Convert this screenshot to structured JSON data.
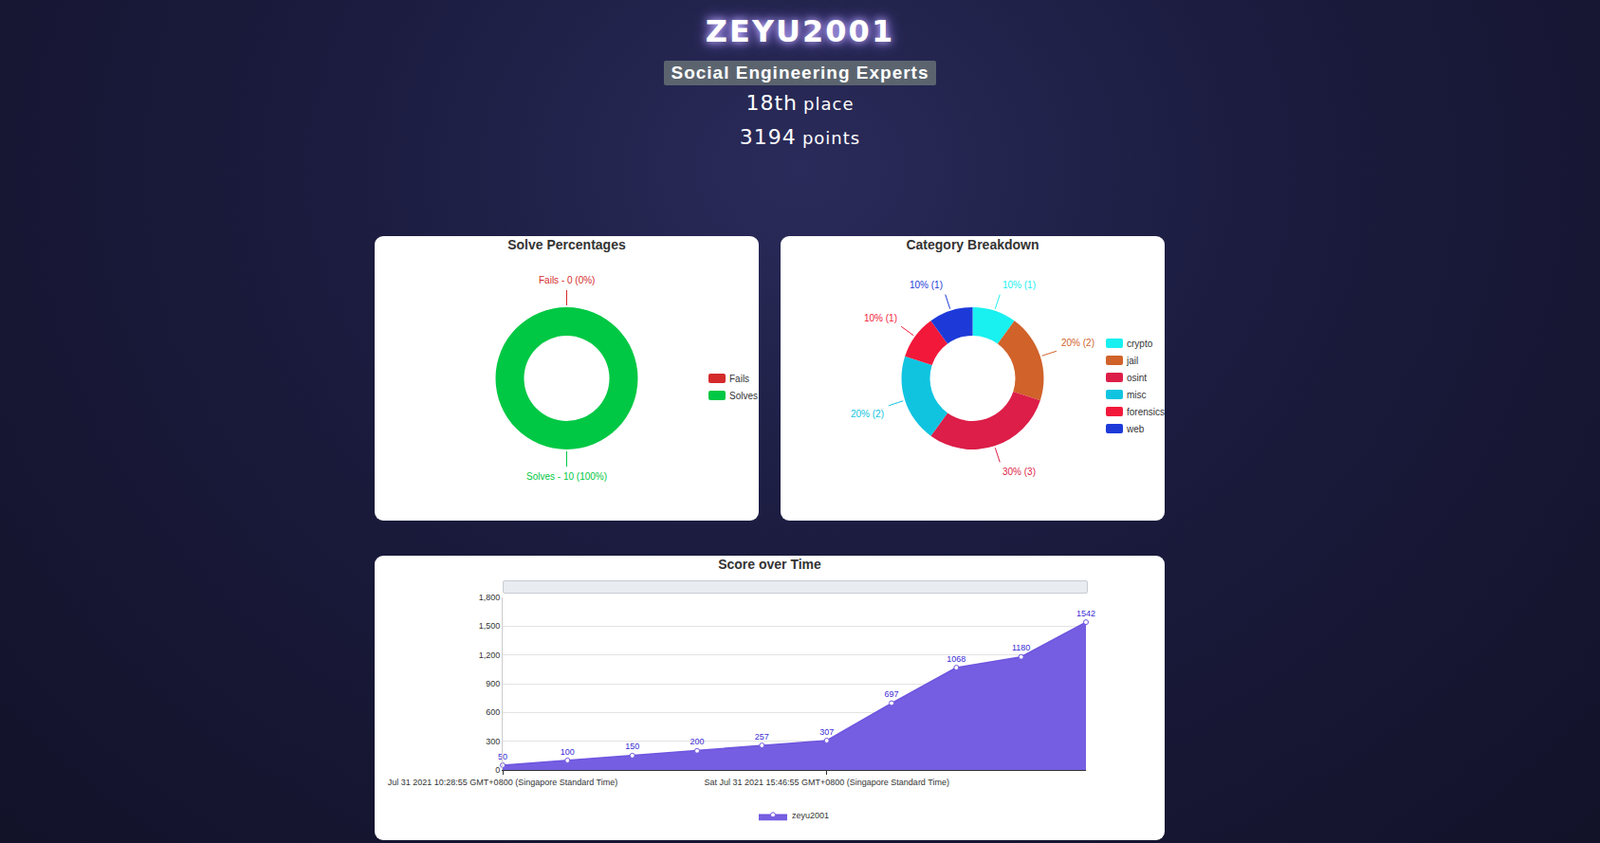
{
  "header": {
    "name": "ZEYU2001",
    "team": "Social Engineering Experts",
    "rank": "18th",
    "rank_label": "place",
    "points": 3194,
    "points_label": "points"
  },
  "chart_data": [
    {
      "type": "donut",
      "title": "Solve Percentages",
      "categories": [
        "Fails",
        "Solves"
      ],
      "values": [
        0,
        10
      ],
      "value_labels": [
        "Fails - 0 (0%)",
        "Solves - 10 (100%)"
      ],
      "colors": [
        "#d42a2a",
        "#00c844"
      ],
      "legend": "right",
      "data_labels": true
    },
    {
      "type": "donut",
      "title": "Category Breakdown",
      "categories": [
        "crypto",
        "jail",
        "osint",
        "misc",
        "forensics",
        "web"
      ],
      "values": [
        1,
        2,
        3,
        2,
        1,
        1
      ],
      "value_labels": [
        "10% (1)",
        "20% (2)",
        "30% (3)",
        "20% (2)",
        "10% (1)",
        "10% (1)"
      ],
      "colors": [
        "#19f0f0",
        "#d0622a",
        "#dc1e48",
        "#10c4e0",
        "#f2183a",
        "#1d3ad9"
      ],
      "legend": "right",
      "data_labels": true
    },
    {
      "type": "area",
      "title": "Score over Time",
      "categories": [
        "Jul 31 2021 10:28:55 GMT+0800 (Singapore Standard Time)",
        null,
        null,
        null,
        null,
        "Sat Jul 31 2021 15:46:55 GMT+0800 (Singapore Standard Time)",
        null,
        null,
        null,
        null
      ],
      "series": [
        {
          "name": "zeyu2001",
          "color": "#6f55e0",
          "values": [
            50,
            100,
            150,
            200,
            257,
            307,
            697,
            1068,
            1180,
            1542
          ]
        }
      ],
      "ylim": [
        0,
        1800
      ],
      "yticks": [
        0,
        300,
        600,
        900,
        {
          "value": 1200,
          "label": "1,200"
        },
        {
          "value": 1500,
          "label": "1,500"
        },
        {
          "value": 1800,
          "label": "1,800"
        }
      ],
      "grid": true,
      "data_labels": true,
      "marker": "circle",
      "legend": "bottom"
    }
  ]
}
